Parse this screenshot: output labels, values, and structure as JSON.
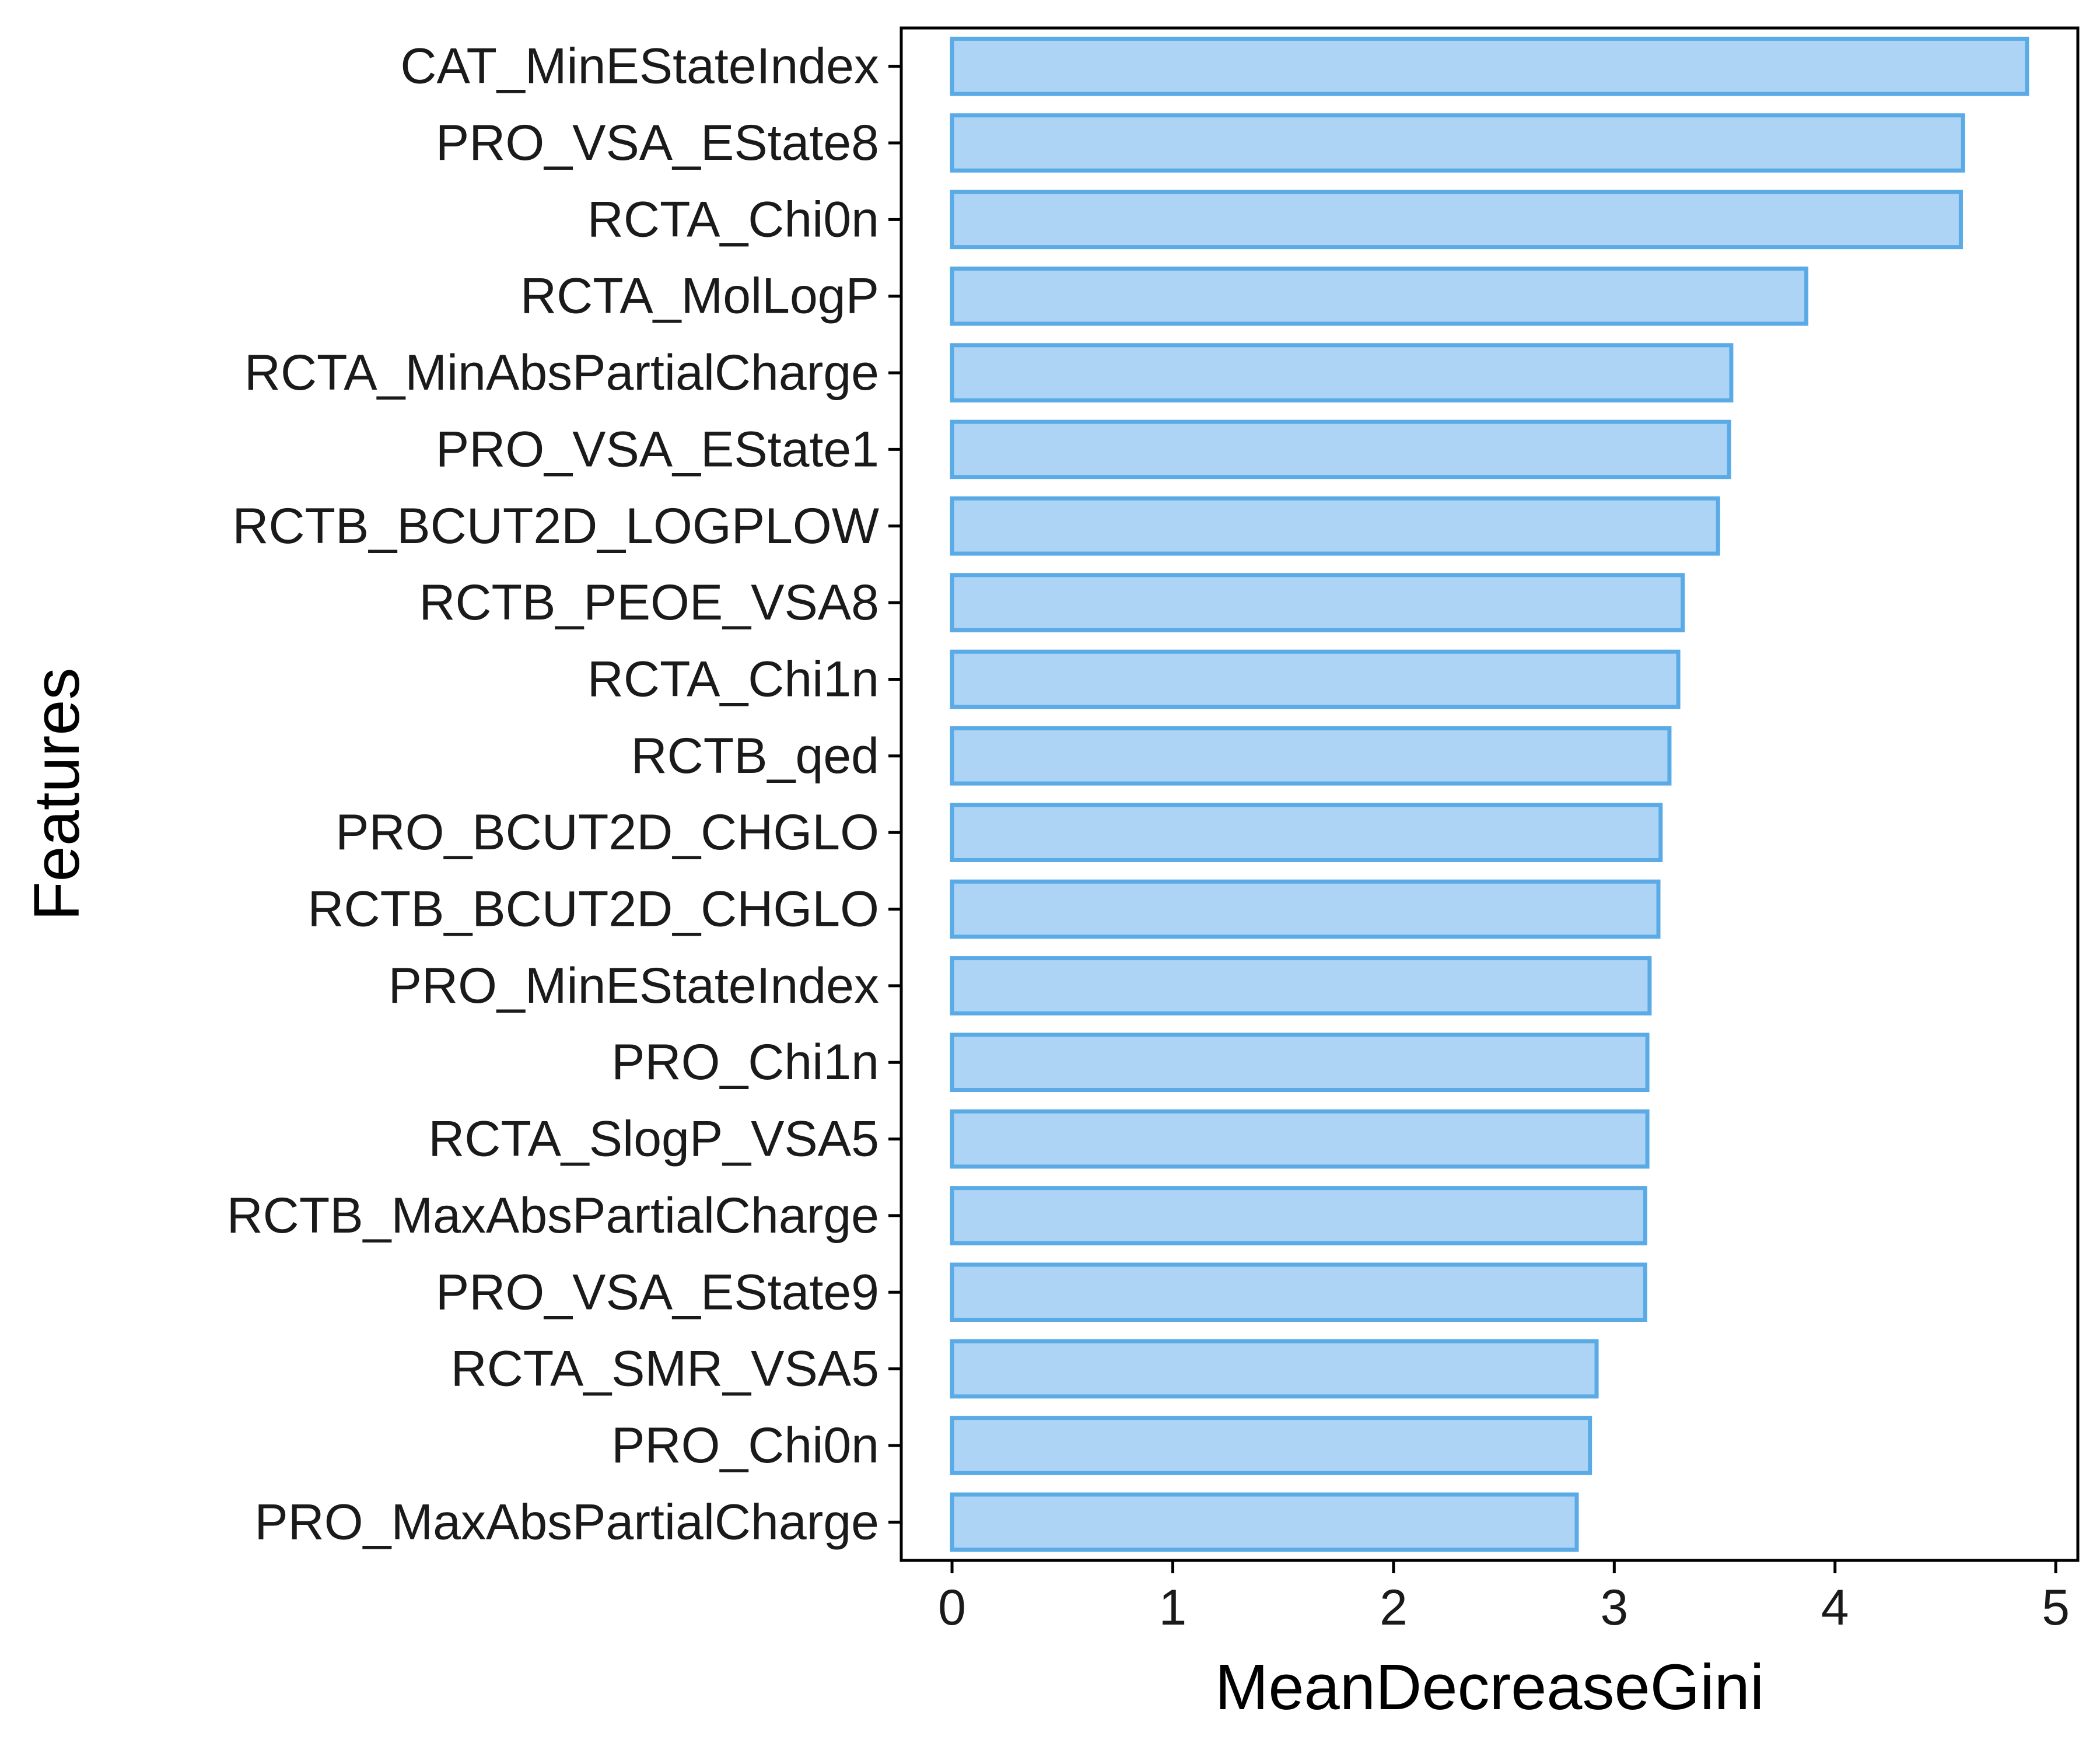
{
  "chart_data": {
    "type": "bar",
    "orientation": "horizontal",
    "xlabel": "MeanDecreaseGini",
    "ylabel": "Features",
    "xlim": [
      -0.23,
      5.1
    ],
    "xticks": [
      0,
      1,
      2,
      3,
      4,
      5
    ],
    "grid": false,
    "bar_fill": "#aed4f5",
    "bar_stroke": "#5aaae6",
    "categories": [
      "CAT_MinEStateIndex",
      "PRO_VSA_EState8",
      "RCTA_Chi0n",
      "RCTA_MolLogP",
      "RCTA_MinAbsPartialCharge",
      "PRO_VSA_EState1",
      "RCTB_BCUT2D_LOGPLOW",
      "RCTB_PEOE_VSA8",
      "RCTA_Chi1n",
      "RCTB_qed",
      "PRO_BCUT2D_CHGLO",
      "RCTB_BCUT2D_CHGLO",
      "PRO_MinEStateIndex",
      "PRO_Chi1n",
      "RCTA_SlogP_VSA5",
      "RCTB_MaxAbsPartialCharge",
      "PRO_VSA_EState9",
      "RCTA_SMR_VSA5",
      "PRO_Chi0n",
      "PRO_MaxAbsPartialCharge"
    ],
    "values": [
      4.87,
      4.58,
      4.57,
      3.87,
      3.53,
      3.52,
      3.47,
      3.31,
      3.29,
      3.25,
      3.21,
      3.2,
      3.16,
      3.15,
      3.15,
      3.14,
      3.14,
      2.92,
      2.89,
      2.83
    ]
  }
}
